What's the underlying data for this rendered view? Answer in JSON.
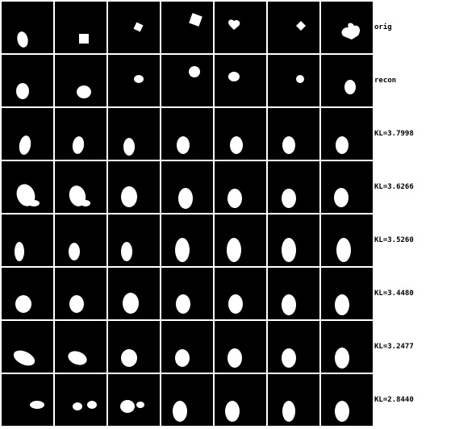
{
  "rows": [
    {
      "label": "orig",
      "cells": [
        {
          "shape": "ellipse"
        },
        {
          "shape": "square"
        },
        {
          "shape": "square-rotated"
        },
        {
          "shape": "square-rotated"
        },
        {
          "shape": "heart"
        },
        {
          "shape": "diamond"
        },
        {
          "shape": "heart"
        }
      ]
    },
    {
      "label": "recon",
      "cells": [
        {
          "shape": "blob"
        },
        {
          "shape": "blob"
        },
        {
          "shape": "blob"
        },
        {
          "shape": "blob"
        },
        {
          "shape": "blob"
        },
        {
          "shape": "blob"
        },
        {
          "shape": "blob"
        }
      ]
    },
    {
      "label": "KL=3.7998",
      "cells": [
        {
          "shape": "blob"
        },
        {
          "shape": "blob"
        },
        {
          "shape": "blob"
        },
        {
          "shape": "blob"
        },
        {
          "shape": "blob"
        },
        {
          "shape": "blob"
        },
        {
          "shape": "blob"
        }
      ]
    },
    {
      "label": "KL=3.6266",
      "cells": [
        {
          "shape": "blob"
        },
        {
          "shape": "blob"
        },
        {
          "shape": "blob"
        },
        {
          "shape": "blob"
        },
        {
          "shape": "blob"
        },
        {
          "shape": "blob"
        },
        {
          "shape": "blob"
        }
      ]
    },
    {
      "label": "KL=3.5260",
      "cells": [
        {
          "shape": "blob"
        },
        {
          "shape": "blob"
        },
        {
          "shape": "blob"
        },
        {
          "shape": "blob"
        },
        {
          "shape": "blob"
        },
        {
          "shape": "blob"
        },
        {
          "shape": "blob"
        }
      ]
    },
    {
      "label": "KL=3.4480",
      "cells": [
        {
          "shape": "blob"
        },
        {
          "shape": "blob"
        },
        {
          "shape": "blob"
        },
        {
          "shape": "blob"
        },
        {
          "shape": "blob"
        },
        {
          "shape": "blob"
        },
        {
          "shape": "blob"
        }
      ]
    },
    {
      "label": "KL=3.2477",
      "cells": [
        {
          "shape": "blob"
        },
        {
          "shape": "blob"
        },
        {
          "shape": "blob"
        },
        {
          "shape": "blob"
        },
        {
          "shape": "blob"
        },
        {
          "shape": "blob"
        },
        {
          "shape": "blob"
        }
      ]
    },
    {
      "label": "KL=2.8440",
      "cells": [
        {
          "shape": "blob"
        },
        {
          "shape": "blob"
        },
        {
          "shape": "blob"
        },
        {
          "shape": "blob"
        },
        {
          "shape": "blob"
        },
        {
          "shape": "blob"
        },
        {
          "shape": "blob"
        }
      ]
    }
  ],
  "colors": {
    "background": "#000000",
    "shape": "#ffffff",
    "page": "#ffffff"
  }
}
